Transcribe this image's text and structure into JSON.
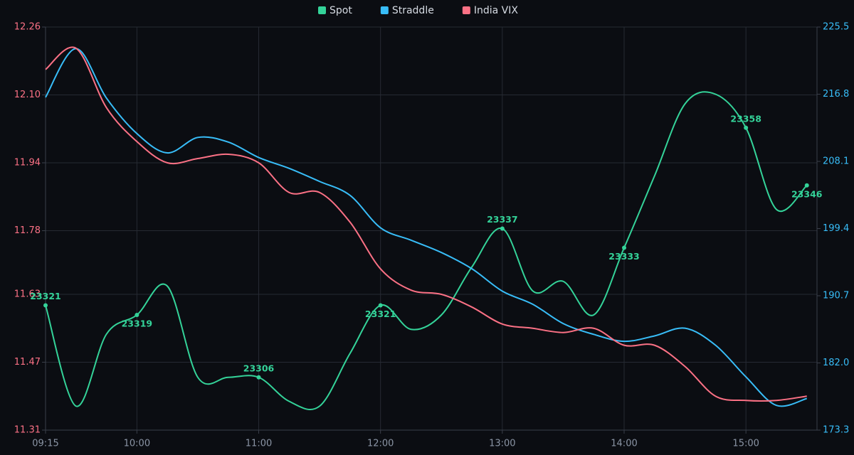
{
  "chart_data": {
    "type": "line",
    "x": [
      "09:15",
      "09:30",
      "09:45",
      "10:00",
      "10:15",
      "10:30",
      "10:45",
      "11:00",
      "11:15",
      "11:30",
      "11:45",
      "12:00",
      "12:15",
      "12:30",
      "12:45",
      "13:00",
      "13:15",
      "13:30",
      "13:45",
      "14:00",
      "14:15",
      "14:30",
      "14:45",
      "15:00",
      "15:15",
      "15:30"
    ],
    "xlim": [
      "09:15",
      "15:35"
    ],
    "xticks": [
      "09:15",
      "10:00",
      "11:00",
      "12:00",
      "13:00",
      "14:00",
      "15:00"
    ],
    "ylim": [
      11.31,
      12.26
    ],
    "yticks": [
      12.26,
      {
        "value": 12.1,
        "label": "12.10"
      },
      11.94,
      11.78,
      11.63,
      11.47,
      11.31
    ],
    "y2lim": [
      173.3,
      225.5
    ],
    "y2ticks": [
      225.5,
      216.8,
      208.1,
      199.4,
      190.7,
      {
        "value": 182,
        "label": "182.0"
      },
      173.3
    ],
    "y3lim": [
      23295,
      23379
    ],
    "grid": true,
    "legend": "top",
    "series": [
      {
        "name": "Spot",
        "color": "#34d399",
        "axis": "y3",
        "labeled_points": [
          0,
          3,
          7,
          11,
          15,
          19,
          23,
          25
        ],
        "values": [
          23321,
          23300,
          23315,
          23319,
          23325,
          23306,
          23306,
          23306,
          23301,
          23300,
          23311,
          23321,
          23316,
          23319,
          23329,
          23337,
          23324,
          23326,
          23319,
          23333,
          23348,
          23363,
          23365,
          23358,
          23341,
          23346
        ]
      },
      {
        "name": "Straddle",
        "color": "#38bdf8",
        "axis": "y2",
        "values": [
          216.4,
          222.7,
          216.3,
          211.7,
          209.2,
          211.2,
          210.6,
          208.6,
          207.2,
          205.5,
          203.7,
          199.5,
          197.9,
          196.3,
          194.2,
          191.3,
          189.6,
          187.1,
          185.7,
          184.8,
          185.5,
          186.5,
          184.3,
          180.2,
          176.5,
          177.4
        ]
      },
      {
        "name": "India VIX",
        "color": "#fb7185",
        "axis": "y",
        "values": [
          12.16,
          12.21,
          12.07,
          11.99,
          11.94,
          11.95,
          11.96,
          11.94,
          11.87,
          11.87,
          11.8,
          11.69,
          11.64,
          11.63,
          11.6,
          11.56,
          11.55,
          11.54,
          11.55,
          11.51,
          11.51,
          11.46,
          11.39,
          11.38,
          11.38,
          11.39
        ]
      }
    ]
  }
}
